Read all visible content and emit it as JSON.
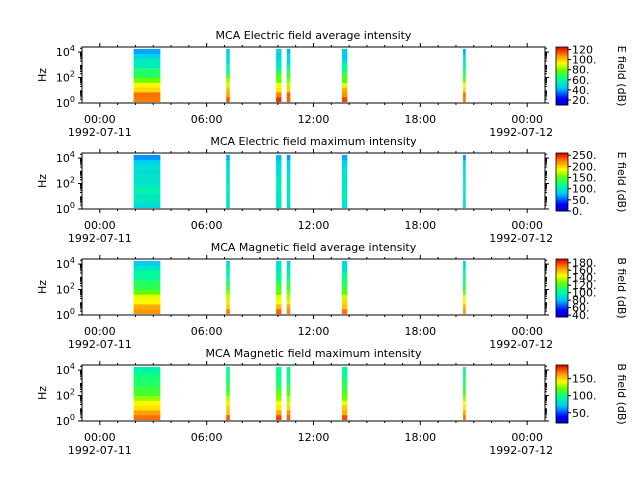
{
  "chart_data": [
    {
      "type": "heatmap",
      "title": "MCA  Electric field average intensity",
      "ylabel": "Hz",
      "colorbar_label": "E field (dB)",
      "colorbar_ticks": [
        {
          "v": 20,
          "label": "20."
        },
        {
          "v": 40,
          "label": "40."
        },
        {
          "v": 60,
          "label": "60."
        },
        {
          "v": 80,
          "label": "80."
        },
        {
          "v": 100,
          "label": "100."
        },
        {
          "v": 120,
          "label": "120"
        }
      ],
      "colorbar_range": [
        10,
        125
      ],
      "y_ticks": [
        {
          "exp": 0,
          "base": "10",
          "sup": "0"
        },
        {
          "exp": 2,
          "base": "10",
          "sup": "2"
        },
        {
          "exp": 4,
          "base": "10",
          "sup": "4"
        }
      ],
      "x_ticks": [
        {
          "h": 0,
          "label": "00:00"
        },
        {
          "h": 6,
          "label": "06:00"
        },
        {
          "h": 12,
          "label": "12:00"
        },
        {
          "h": 18,
          "label": "18:00"
        },
        {
          "h": 24,
          "label": "00:00"
        }
      ],
      "x_range_hours": [
        -1,
        25
      ],
      "y_range_log10_hz": [
        0,
        4.4
      ],
      "start_date": "1992-07-11",
      "end_date": "1992-07-12",
      "bursts_hours": [
        [
          1.9,
          3.4
        ],
        [
          7.1,
          7.3
        ],
        [
          9.9,
          10.2
        ],
        [
          10.5,
          10.7
        ],
        [
          13.6,
          13.9
        ],
        [
          20.4,
          20.55
        ]
      ],
      "spectrum_low_to_high_db": [
        115,
        110,
        100,
        90,
        80,
        72,
        65,
        58,
        52,
        48,
        45
      ]
    },
    {
      "type": "heatmap",
      "title": "MCA  Electric field maximum intensity",
      "ylabel": "Hz",
      "colorbar_label": "E field (dB)",
      "colorbar_ticks": [
        {
          "v": 0,
          "label": "0."
        },
        {
          "v": 50,
          "label": "50."
        },
        {
          "v": 100,
          "label": "100."
        },
        {
          "v": 150,
          "label": "150."
        },
        {
          "v": 200,
          "label": "200."
        },
        {
          "v": 250,
          "label": "250."
        }
      ],
      "colorbar_range": [
        0,
        260
      ],
      "y_ticks": [
        {
          "exp": 0,
          "base": "10",
          "sup": "0"
        },
        {
          "exp": 2,
          "base": "10",
          "sup": "2"
        },
        {
          "exp": 4,
          "base": "10",
          "sup": "4"
        }
      ],
      "x_ticks": [
        {
          "h": 0,
          "label": "00:00"
        },
        {
          "h": 6,
          "label": "06:00"
        },
        {
          "h": 12,
          "label": "12:00"
        },
        {
          "h": 18,
          "label": "18:00"
        },
        {
          "h": 24,
          "label": "00:00"
        }
      ],
      "x_range_hours": [
        -1,
        25
      ],
      "y_range_log10_hz": [
        0,
        4.4
      ],
      "start_date": "1992-07-11",
      "end_date": "1992-07-12",
      "bursts_hours": [
        [
          1.9,
          3.4
        ],
        [
          7.1,
          7.3
        ],
        [
          9.9,
          10.2
        ],
        [
          10.5,
          10.7
        ],
        [
          13.6,
          13.9
        ],
        [
          20.4,
          20.55
        ]
      ],
      "spectrum_low_to_high_db": [
        95,
        100,
        102,
        105,
        103,
        100,
        98,
        95,
        92,
        85,
        70
      ]
    },
    {
      "type": "heatmap",
      "title": "MCA  Magnetic field average intensity",
      "ylabel": "Hz",
      "colorbar_label": "B field (dB)",
      "colorbar_ticks": [
        {
          "v": 40,
          "label": "40."
        },
        {
          "v": 60,
          "label": "60."
        },
        {
          "v": 80,
          "label": "80."
        },
        {
          "v": 100,
          "label": "100."
        },
        {
          "v": 120,
          "label": "120."
        },
        {
          "v": 140,
          "label": "140."
        },
        {
          "v": 160,
          "label": "160."
        },
        {
          "v": 180,
          "label": "180."
        }
      ],
      "colorbar_range": [
        35,
        190
      ],
      "y_ticks": [
        {
          "exp": 0,
          "base": "10",
          "sup": "0"
        },
        {
          "exp": 2,
          "base": "10",
          "sup": "2"
        },
        {
          "exp": 4,
          "base": "10",
          "sup": "4"
        }
      ],
      "x_ticks": [
        {
          "h": 0,
          "label": "00:00"
        },
        {
          "h": 6,
          "label": "06:00"
        },
        {
          "h": 12,
          "label": "12:00"
        },
        {
          "h": 18,
          "label": "18:00"
        },
        {
          "h": 24,
          "label": "00:00"
        }
      ],
      "x_range_hours": [
        -1,
        25
      ],
      "y_range_log10_hz": [
        0,
        4.4
      ],
      "start_date": "1992-07-11",
      "end_date": "1992-07-12",
      "bursts_hours": [
        [
          1.9,
          3.4
        ],
        [
          7.1,
          7.3
        ],
        [
          9.9,
          10.2
        ],
        [
          10.5,
          10.7
        ],
        [
          13.6,
          13.9
        ],
        [
          20.4,
          20.55
        ]
      ],
      "spectrum_low_to_high_db": [
        170,
        160,
        150,
        140,
        128,
        118,
        112,
        105,
        100,
        95,
        88
      ]
    },
    {
      "type": "heatmap",
      "title": "MCA  Magnetic field maximum intensity",
      "ylabel": "Hz",
      "colorbar_label": "B field (dB)",
      "colorbar_ticks": [
        {
          "v": 50,
          "label": "50."
        },
        {
          "v": 100,
          "label": "100."
        },
        {
          "v": 150,
          "label": "150."
        }
      ],
      "colorbar_range": [
        20,
        190
      ],
      "y_ticks": [
        {
          "exp": 0,
          "base": "10",
          "sup": "0"
        },
        {
          "exp": 2,
          "base": "10",
          "sup": "2"
        },
        {
          "exp": 4,
          "base": "10",
          "sup": "4"
        }
      ],
      "x_ticks": [
        {
          "h": 0,
          "label": "00:00"
        },
        {
          "h": 6,
          "label": "06:00"
        },
        {
          "h": 12,
          "label": "12:00"
        },
        {
          "h": 18,
          "label": "18:00"
        },
        {
          "h": 24,
          "label": "00:00"
        }
      ],
      "x_range_hours": [
        -1,
        25
      ],
      "y_range_log10_hz": [
        0,
        4.4
      ],
      "start_date": "1992-07-11",
      "end_date": "1992-07-12",
      "bursts_hours": [
        [
          1.9,
          3.4
        ],
        [
          7.1,
          7.3
        ],
        [
          9.9,
          10.2
        ],
        [
          10.5,
          10.7
        ],
        [
          13.6,
          13.9
        ],
        [
          20.4,
          20.55
        ]
      ],
      "spectrum_low_to_high_db": [
        175,
        160,
        150,
        140,
        128,
        118,
        110,
        105,
        100,
        98,
        95
      ]
    }
  ]
}
